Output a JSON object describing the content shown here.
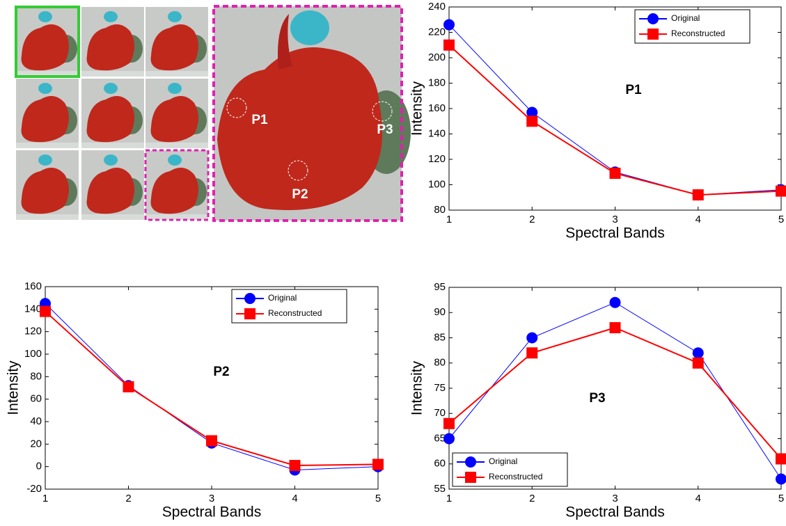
{
  "image": {
    "points": [
      "P1",
      "P2",
      "P3"
    ]
  },
  "chart_data": [
    {
      "type": "line",
      "annotation": "P1",
      "xlabel": "Spectral Bands",
      "ylabel": "Intensity",
      "x": [
        1,
        2,
        3,
        4,
        5
      ],
      "xlim": [
        1,
        5
      ],
      "xticks": [
        1,
        2,
        3,
        4,
        5
      ],
      "ylim": [
        80,
        240
      ],
      "yticks": [
        80,
        100,
        120,
        140,
        160,
        180,
        200,
        220,
        240
      ],
      "legend": "upper right",
      "series": [
        {
          "name": "Original",
          "color": "#0000ff",
          "marker": "circle",
          "values": [
            226,
            157,
            110,
            92,
            96
          ]
        },
        {
          "name": "Reconstructed",
          "color": "#ff0000",
          "marker": "square",
          "values": [
            210,
            150,
            109,
            92,
            95
          ]
        }
      ]
    },
    {
      "type": "line",
      "annotation": "P2",
      "xlabel": "Spectral Bands",
      "ylabel": "Intensity",
      "x": [
        1,
        2,
        3,
        4,
        5
      ],
      "xlim": [
        1,
        5
      ],
      "xticks": [
        1,
        2,
        3,
        4,
        5
      ],
      "ylim": [
        -20,
        160
      ],
      "yticks": [
        -20,
        0,
        20,
        40,
        60,
        80,
        100,
        120,
        140,
        160
      ],
      "legend": "upper right",
      "series": [
        {
          "name": "Original",
          "color": "#0000ff",
          "marker": "circle",
          "values": [
            145,
            72,
            21,
            -3,
            0
          ]
        },
        {
          "name": "Reconstructed",
          "color": "#ff0000",
          "marker": "square",
          "values": [
            138,
            71,
            23,
            1,
            2
          ]
        }
      ]
    },
    {
      "type": "line",
      "annotation": "P3",
      "xlabel": "Spectral Bands",
      "ylabel": "Intensity",
      "x": [
        1,
        2,
        3,
        4,
        5
      ],
      "xlim": [
        1,
        5
      ],
      "xticks": [
        1,
        2,
        3,
        4,
        5
      ],
      "ylim": [
        55,
        95
      ],
      "yticks": [
        55,
        60,
        65,
        70,
        75,
        80,
        85,
        90,
        95
      ],
      "legend": "lower left",
      "series": [
        {
          "name": "Original",
          "color": "#0000ff",
          "marker": "circle",
          "values": [
            65,
            85,
            92,
            82,
            57
          ]
        },
        {
          "name": "Reconstructed",
          "color": "#ff0000",
          "marker": "square",
          "values": [
            68,
            82,
            87,
            80,
            61
          ]
        }
      ]
    }
  ]
}
